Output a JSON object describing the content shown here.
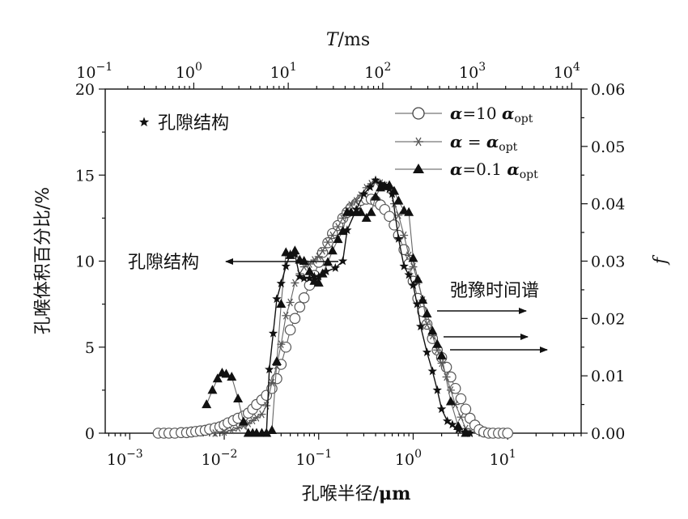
{
  "chart_data": {
    "type": "line",
    "title": "",
    "top_axis": {
      "label_italic": "T",
      "label_rest": "/ms",
      "scale": "log",
      "ticks": [
        {
          "base": "10",
          "exp": "−1",
          "value": 0.1
        },
        {
          "base": "10",
          "exp": "0",
          "value": 1
        },
        {
          "base": "10",
          "exp": "1",
          "value": 10
        },
        {
          "base": "10",
          "exp": "2",
          "value": 100
        },
        {
          "base": "10",
          "exp": "3",
          "value": 1000
        },
        {
          "base": "10",
          "exp": "4",
          "value": 10000
        }
      ]
    },
    "x_axis": {
      "label": "孔喉半径/",
      "label_unit": "μm",
      "scale": "log",
      "range": [
        0.00055,
        60
      ],
      "ticks": [
        {
          "base": "10",
          "exp": "−3",
          "value": 0.001
        },
        {
          "base": "10",
          "exp": "−2",
          "value": 0.01
        },
        {
          "base": "10",
          "exp": "−1",
          "value": 0.1
        },
        {
          "base": "10",
          "exp": "0",
          "value": 1
        },
        {
          "base": "10",
          "exp": "1",
          "value": 10
        }
      ]
    },
    "y_left": {
      "label": "孔喉体积百分比/%",
      "range": [
        0,
        20
      ],
      "ticks": [
        "0",
        "5",
        "10",
        "15",
        "20"
      ]
    },
    "y_right": {
      "label": "f",
      "range": [
        0,
        0.06
      ],
      "ticks": [
        "0.00",
        "0.01",
        "0.02",
        "0.03",
        "0.04",
        "0.05",
        "0.06"
      ]
    },
    "legend": {
      "position": "top-right",
      "entries": [
        {
          "marker": "circle",
          "prefix": "α",
          "middle": "=10 ",
          "suffix_sym": "α",
          "sub": "opt"
        },
        {
          "marker": "asterisk",
          "prefix": "α",
          "middle": " = ",
          "suffix_sym": "α",
          "sub": "opt"
        },
        {
          "marker": "triangle",
          "prefix": "α",
          "middle": "=0.1 ",
          "suffix_sym": "α",
          "sub": "opt"
        }
      ]
    },
    "pore_legend": {
      "marker": "star",
      "label": "孔隙结构",
      "position": "top-left"
    },
    "annotations": [
      {
        "text": "孔隙结构",
        "arrow": "left",
        "y_value": 10.0
      },
      {
        "text": "弛豫时间谱",
        "arrow": "right",
        "y_value": 0.0215
      }
    ],
    "series": [
      {
        "marker": "star",
        "name": "孔隙结构",
        "axis": "left",
        "x": [
          0.028,
          0.03,
          0.033,
          0.036,
          0.04,
          0.045,
          0.05,
          0.056,
          0.063,
          0.07,
          0.08,
          0.09,
          0.1,
          0.12,
          0.15,
          0.18,
          0.2,
          0.25,
          0.3,
          0.35,
          0.4,
          0.45,
          0.5,
          0.56,
          0.6,
          0.7,
          0.8,
          0.9,
          1.0,
          1.1,
          1.2,
          1.4,
          1.6,
          1.8,
          2.0,
          2.3,
          2.6,
          3.0,
          3.5,
          4.0
        ],
        "y": [
          0,
          3.7,
          5.8,
          7.8,
          8.7,
          9.7,
          10.4,
          10.4,
          9.1,
          9.0,
          9.0,
          9.1,
          9.1,
          9.4,
          9.6,
          10.0,
          11.8,
          13.0,
          13.9,
          14.3,
          14.7,
          14.5,
          14.4,
          14.2,
          13.9,
          11.3,
          9.7,
          9.2,
          8.6,
          7.5,
          6.2,
          4.7,
          3.6,
          2.5,
          1.4,
          0.7,
          0.5,
          0.2,
          0.05,
          0
        ]
      },
      {
        "marker": "circle",
        "name": "",
        "axis": "right",
        "x": [
          0.002,
          0.0023,
          0.0026,
          0.003,
          0.0035,
          0.004,
          0.0045,
          0.005,
          0.0056,
          0.0063,
          0.007,
          0.008,
          0.009,
          0.01,
          0.011,
          0.0125,
          0.014,
          0.016,
          0.018,
          0.02,
          0.022,
          0.025,
          0.028,
          0.032,
          0.036,
          0.04,
          0.045,
          0.05,
          0.056,
          0.063,
          0.07,
          0.08,
          0.09,
          0.1,
          0.11,
          0.125,
          0.14,
          0.16,
          0.18,
          0.2,
          0.22,
          0.25,
          0.28,
          0.32,
          0.36,
          0.4,
          0.45,
          0.5,
          0.56,
          0.63,
          0.7,
          0.8,
          0.9,
          1.0,
          1.12,
          1.26,
          1.4,
          1.6,
          1.8,
          2.0,
          2.25,
          2.5,
          2.8,
          3.2,
          3.6,
          4.0,
          4.5,
          5.0,
          5.6,
          6.3,
          7.0,
          8.0,
          9.0,
          10.0
        ],
        "y": [
          0,
          0,
          0,
          0,
          0.0001,
          0.0001,
          0.0002,
          0.0003,
          0.0004,
          0.0005,
          0.0007,
          0.0009,
          0.0011,
          0.0014,
          0.0018,
          0.0022,
          0.0026,
          0.003,
          0.0035,
          0.0042,
          0.005,
          0.0058,
          0.0066,
          0.0078,
          0.0095,
          0.012,
          0.015,
          0.018,
          0.02,
          0.022,
          0.0236,
          0.0258,
          0.0275,
          0.0298,
          0.0315,
          0.0332,
          0.0348,
          0.0362,
          0.0375,
          0.0385,
          0.0393,
          0.04,
          0.0406,
          0.0408,
          0.0408,
          0.0405,
          0.0398,
          0.039,
          0.0378,
          0.0363,
          0.0345,
          0.032,
          0.0295,
          0.0265,
          0.0235,
          0.0212,
          0.019,
          0.0165,
          0.0145,
          0.0132,
          0.0115,
          0.0098,
          0.0078,
          0.006,
          0.0042,
          0.0026,
          0.0014,
          0.0006,
          0.0002,
          0,
          0,
          0,
          0,
          0
        ]
      },
      {
        "marker": "asterisk",
        "name": "",
        "axis": "right",
        "x": [
          0.008,
          0.01,
          0.012,
          0.014,
          0.016,
          0.018,
          0.02,
          0.022,
          0.025,
          0.028,
          0.032,
          0.036,
          0.04,
          0.045,
          0.05,
          0.056,
          0.063,
          0.07,
          0.08,
          0.09,
          0.1,
          0.11,
          0.125,
          0.14,
          0.16,
          0.18,
          0.2,
          0.22,
          0.25,
          0.28,
          0.32,
          0.36,
          0.4,
          0.45,
          0.5,
          0.56,
          0.63,
          0.7,
          0.8,
          0.9,
          1.0,
          1.12,
          1.26,
          1.4,
          1.6,
          1.8,
          2.0,
          2.25,
          2.5,
          2.8,
          3.2,
          3.6,
          4.0
        ],
        "y": [
          0,
          0.0002,
          0.0005,
          0.0009,
          0.0013,
          0.0017,
          0.0022,
          0.0027,
          0.0033,
          0.0048,
          0.0088,
          0.0118,
          0.0155,
          0.0205,
          0.0228,
          0.0262,
          0.0278,
          0.029,
          0.0295,
          0.0302,
          0.0308,
          0.0318,
          0.0333,
          0.0345,
          0.036,
          0.0375,
          0.0388,
          0.0398,
          0.0405,
          0.0415,
          0.0428,
          0.0435,
          0.0438,
          0.0436,
          0.0432,
          0.0425,
          0.04,
          0.038,
          0.0345,
          0.031,
          0.029,
          0.0265,
          0.0232,
          0.019,
          0.017,
          0.0145,
          0.0122,
          0.0098,
          0.0075,
          0.005,
          0.0028,
          0.0008,
          0
        ]
      },
      {
        "marker": "triangle",
        "name": "",
        "axis": "right",
        "x": [
          0.0065,
          0.0075,
          0.0085,
          0.0095,
          0.0105,
          0.012,
          0.014,
          0.016,
          0.018,
          0.02,
          0.022,
          0.025,
          0.028,
          0.032,
          0.036,
          0.04,
          0.045,
          0.05,
          0.056,
          0.063,
          0.07,
          0.08,
          0.09,
          0.1,
          0.11,
          0.125,
          0.14,
          0.16,
          0.18,
          0.2,
          0.22,
          0.25,
          0.28,
          0.32,
          0.36,
          0.4,
          0.45,
          0.5,
          0.56,
          0.63,
          0.7,
          0.8,
          0.9,
          1.0,
          1.12,
          1.26,
          1.4,
          1.6,
          1.8,
          2.0,
          2.5,
          3.0,
          3.6
        ],
        "y": [
          0.005,
          0.0075,
          0.0095,
          0.0105,
          0.0103,
          0.0098,
          0.006,
          0.002,
          0,
          0,
          0,
          0,
          0,
          0.0005,
          0.0125,
          0.0225,
          0.0315,
          0.031,
          0.0318,
          0.0302,
          0.03,
          0.0282,
          0.0265,
          0.0262,
          0.0278,
          0.0298,
          0.0318,
          0.0338,
          0.0352,
          0.0385,
          0.0385,
          0.0385,
          0.0385,
          0.0375,
          0.0385,
          0.0412,
          0.0428,
          0.043,
          0.0432,
          0.0422,
          0.0405,
          0.0388,
          0.0385,
          0.0305,
          0.0268,
          0.0232,
          0.0208,
          0.0178,
          0.0155,
          0.0135,
          0.0055,
          0.0012,
          0
        ]
      }
    ]
  }
}
